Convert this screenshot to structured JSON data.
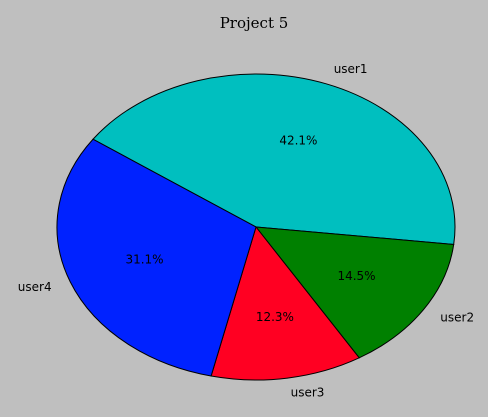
{
  "chart_data": {
    "type": "pie",
    "title": "Project 5",
    "slices": [
      {
        "label": "user1",
        "value": 42.1,
        "pct_label": "42.1%",
        "color": "#00bfbf"
      },
      {
        "label": "user2",
        "value": 14.5,
        "pct_label": "14.5%",
        "color": "#008000"
      },
      {
        "label": "user3",
        "value": 12.3,
        "pct_label": "12.3%",
        "color": "#ff0022"
      },
      {
        "label": "user4",
        "value": 31.1,
        "pct_label": "31.1%",
        "color": "#0022ff"
      }
    ],
    "start_angle_deg": 145,
    "direction": "clockwise"
  }
}
